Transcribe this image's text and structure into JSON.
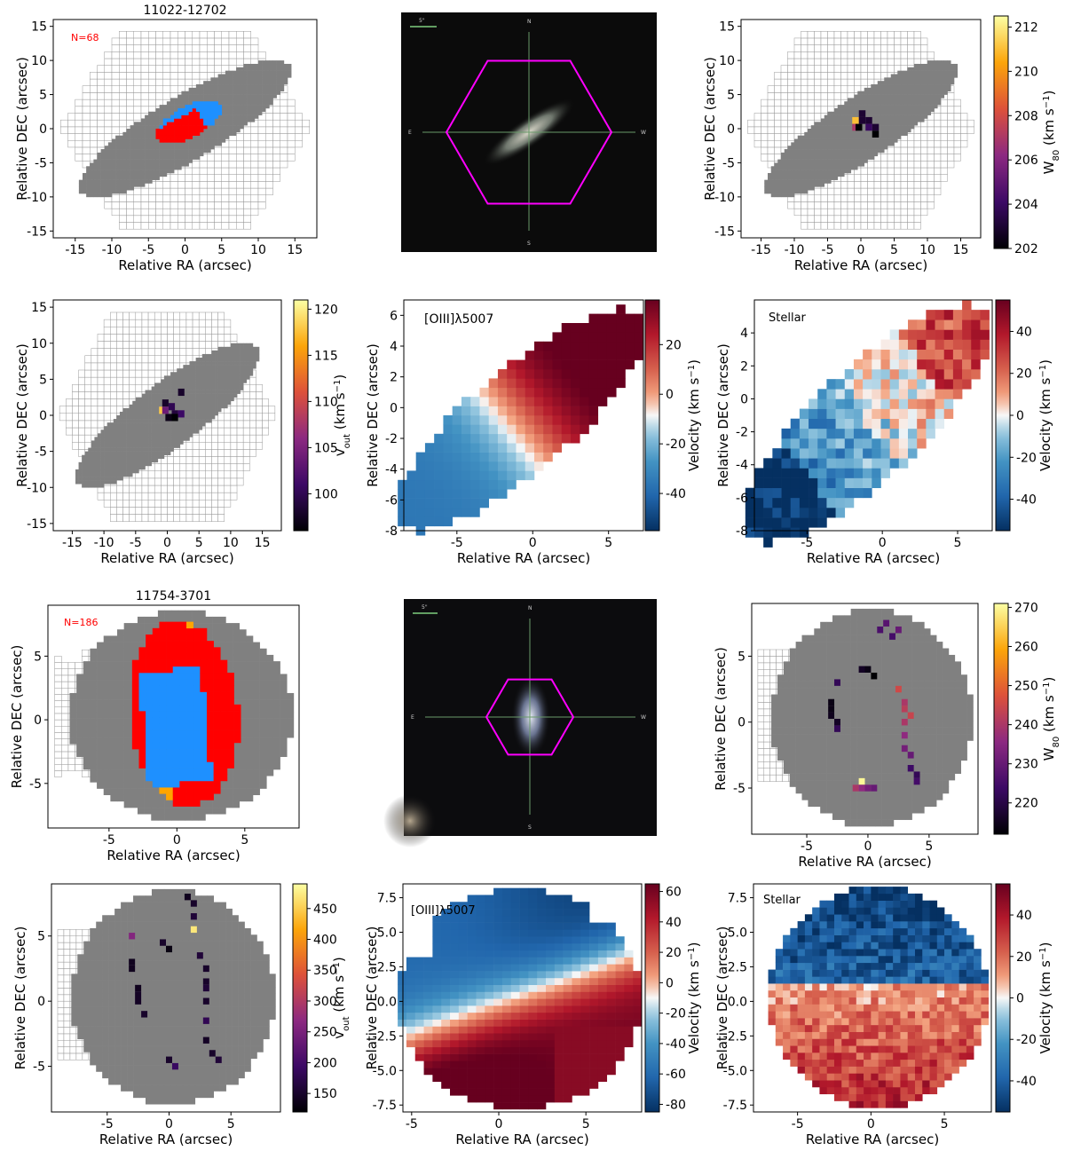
{
  "chart_data": [
    {
      "id": "p1",
      "type": "heatmap",
      "title": "11022-12702",
      "annotation": "N=68",
      "xlabel": "Relative RA (arcsec)",
      "ylabel": "Relative DEC (arcsec)",
      "xlim": [
        -18,
        18
      ],
      "ylim": [
        -16,
        16
      ],
      "xticks": [
        -15,
        -10,
        -5,
        0,
        5,
        10,
        15
      ],
      "yticks": [
        -15,
        -10,
        -5,
        0,
        5,
        10,
        15
      ],
      "map": "classification",
      "galaxy": "edge-on ellipse",
      "hexagon_field": true,
      "categories": [
        "grey",
        "blue",
        "red"
      ],
      "colors": {
        "grey": "#808080",
        "blue": "#1e90ff",
        "red": "#ff0000",
        "orange": "#ffa500"
      }
    },
    {
      "id": "p2",
      "type": "image",
      "scalebar_label": "5\"",
      "compass": {
        "n": "N",
        "s": "S",
        "e": "E",
        "w": "W"
      },
      "hexagon_color": "#ff00ff"
    },
    {
      "id": "p3",
      "type": "heatmap",
      "xlabel": "Relative RA (arcsec)",
      "ylabel": "Relative DEC (arcsec)",
      "xlim": [
        -18,
        18
      ],
      "ylim": [
        -16,
        16
      ],
      "xticks": [
        -15,
        -10,
        -5,
        0,
        5,
        10,
        15
      ],
      "yticks": [
        -15,
        -10,
        -5,
        0,
        5,
        10,
        15
      ],
      "colorbar": {
        "label": "W80 (km s−1)",
        "label_main": "W",
        "label_sub": "80",
        "label_units": "(km s",
        "label_sup": "−1",
        "label_close": ")",
        "min": 202,
        "max": 212.5,
        "ticks": [
          202,
          204,
          206,
          208,
          210,
          212
        ],
        "cmap": "inferno"
      },
      "pixels": [
        [
          -0.8,
          1.2,
          211
        ],
        [
          -0.8,
          0.2,
          207
        ],
        [
          0.2,
          1.2,
          203
        ],
        [
          0.2,
          2.2,
          203
        ],
        [
          1.2,
          1.2,
          203
        ],
        [
          1.2,
          0.2,
          204
        ],
        [
          2.2,
          0.2,
          203
        ],
        [
          -0.3,
          0.2,
          202
        ],
        [
          2.2,
          -0.8,
          202
        ]
      ]
    },
    {
      "id": "p4",
      "type": "heatmap",
      "xlabel": "Relative RA (arcsec)",
      "ylabel": "Relative DEC (arcsec)",
      "xlim": [
        -18,
        18
      ],
      "ylim": [
        -16,
        16
      ],
      "xticks": [
        -15,
        -10,
        -5,
        0,
        5,
        10,
        15
      ],
      "yticks": [
        -15,
        -10,
        -5,
        0,
        5,
        10,
        15
      ],
      "colorbar": {
        "label": "vout (km s−1)",
        "label_main": "v",
        "label_sub": "out",
        "label_units": "(km s",
        "label_sup": "−1",
        "label_close": ")",
        "min": 96,
        "max": 121,
        "ticks": [
          100,
          105,
          110,
          115,
          120
        ],
        "cmap": "inferno"
      },
      "pixels": [
        [
          -0.8,
          0.7,
          118
        ],
        [
          -0.3,
          1.7,
          98
        ],
        [
          0.7,
          1.2,
          100
        ],
        [
          0.2,
          -0.3,
          97
        ],
        [
          1.2,
          0.2,
          99
        ],
        [
          2.2,
          0.2,
          101
        ],
        [
          2.2,
          3.2,
          98
        ],
        [
          1.2,
          -0.3,
          96
        ],
        [
          -0.3,
          0.7,
          104
        ]
      ]
    },
    {
      "id": "p5",
      "type": "heatmap",
      "annotation": "[OIII]λ5007",
      "xlabel": "Relative RA (arcsec)",
      "ylabel": "Relative DEC (arcsec)",
      "xlim": [
        -8.5,
        7.3
      ],
      "ylim": [
        -8,
        7
      ],
      "xticks": [
        -5,
        0,
        5
      ],
      "yticks": [
        -8,
        -6,
        -4,
        -2,
        0,
        2,
        4,
        6
      ],
      "colorbar": {
        "label": "Velocity (km s−1)",
        "label_main": "Velocity",
        "label_units": "(km s",
        "label_sup": "−1",
        "label_close": ")",
        "min": -55,
        "max": 38,
        "ticks": [
          -40,
          -20,
          0,
          20
        ],
        "cmap": "RdBu_r"
      }
    },
    {
      "id": "p6",
      "type": "heatmap",
      "annotation": "Stellar",
      "xlabel": "Relative RA (arcsec)",
      "ylabel": "Relative DEC (arcsec)",
      "xlim": [
        -8.5,
        7.3
      ],
      "ylim": [
        -8,
        6
      ],
      "xticks": [
        -5,
        0,
        5
      ],
      "yticks": [
        -8,
        -6,
        -4,
        -2,
        0,
        2,
        4
      ],
      "colorbar": {
        "label": "Velocity (km s−1)",
        "label_main": "Velocity",
        "label_units": "(km s",
        "label_sup": "−1",
        "label_close": ")",
        "min": -55,
        "max": 55,
        "ticks": [
          -40,
          -20,
          0,
          20,
          40
        ],
        "cmap": "RdBu_r"
      }
    },
    {
      "id": "p7",
      "type": "heatmap",
      "title": "11754-3701",
      "annotation": "N=186",
      "xlabel": "Relative RA (arcsec)",
      "ylabel": "Relative DEC (arcsec)",
      "xlim": [
        -9.5,
        9
      ],
      "ylim": [
        -8.5,
        9
      ],
      "xticks": [
        -5,
        0,
        5
      ],
      "yticks": [
        -5,
        0,
        5
      ],
      "map": "classification",
      "galaxy": "round",
      "categories": [
        "grey",
        "red",
        "blue",
        "orange"
      ],
      "colors": {
        "grey": "#808080",
        "blue": "#1e90ff",
        "red": "#ff0000",
        "orange": "#ffa500"
      }
    },
    {
      "id": "p8",
      "type": "image",
      "scalebar_label": "5\"",
      "compass": {
        "n": "N",
        "s": "S",
        "e": "E",
        "w": "W"
      },
      "hexagon_color": "#ff00ff"
    },
    {
      "id": "p9",
      "type": "heatmap",
      "xlabel": "Relative RA (arcsec)",
      "ylabel": "Relative DEC (arcsec)",
      "xlim": [
        -9.5,
        9
      ],
      "ylim": [
        -8.5,
        9
      ],
      "xticks": [
        -5,
        0,
        5
      ],
      "yticks": [
        -5,
        0,
        5
      ],
      "colorbar": {
        "label": "W80 (km s−1)",
        "label_main": "W",
        "label_sub": "80",
        "label_units": "(km s",
        "label_sup": "−1",
        "label_close": ")",
        "min": 212,
        "max": 271,
        "ticks": [
          220,
          230,
          240,
          250,
          260,
          270
        ],
        "cmap": "inferno"
      },
      "pixels": [
        [
          1.5,
          7.5,
          228
        ],
        [
          2,
          6.5,
          225
        ],
        [
          2.5,
          7,
          230
        ],
        [
          1,
          7,
          226
        ],
        [
          0,
          4,
          214
        ],
        [
          0.5,
          3.5,
          212
        ],
        [
          -0.5,
          4,
          216
        ],
        [
          -2.5,
          3,
          222
        ],
        [
          -3,
          1.5,
          214
        ],
        [
          -3,
          1,
          214
        ],
        [
          -3,
          0.5,
          215
        ],
        [
          -2.5,
          0,
          216
        ],
        [
          -2.5,
          -0.5,
          222
        ],
        [
          2.5,
          2.5,
          245
        ],
        [
          3,
          1.5,
          240
        ],
        [
          3,
          1,
          242
        ],
        [
          3.5,
          0.5,
          244
        ],
        [
          3,
          0,
          240
        ],
        [
          3,
          -1,
          236
        ],
        [
          3,
          -2,
          232
        ],
        [
          3.5,
          -2.5,
          230
        ],
        [
          3.5,
          -3.5,
          224
        ],
        [
          4,
          -4,
          222
        ],
        [
          4,
          -4.5,
          225
        ],
        [
          -0.5,
          -4.5,
          270
        ],
        [
          0,
          -5,
          232
        ],
        [
          -0.5,
          -5,
          236
        ],
        [
          -1,
          -5,
          240
        ],
        [
          0.5,
          -5,
          230
        ]
      ]
    },
    {
      "id": "p10",
      "type": "heatmap",
      "xlabel": "Relative RA (arcsec)",
      "ylabel": "Relative DEC (arcsec)",
      "xlim": [
        -9.5,
        9
      ],
      "ylim": [
        -8.5,
        9
      ],
      "xticks": [
        -5,
        0,
        5
      ],
      "yticks": [
        -5,
        0,
        5
      ],
      "colorbar": {
        "label": "vout (km s−1)",
        "label_main": "v",
        "label_sub": "out",
        "label_units": "(km s",
        "label_sup": "−1",
        "label_close": ")",
        "min": 120,
        "max": 490,
        "ticks": [
          150,
          200,
          250,
          300,
          350,
          400,
          450
        ],
        "cmap": "inferno"
      },
      "pixels": [
        [
          1.5,
          8,
          140
        ],
        [
          2,
          7.5,
          150
        ],
        [
          2,
          6.5,
          160
        ],
        [
          2,
          5.5,
          470
        ],
        [
          -3,
          5,
          260
        ],
        [
          -0.5,
          4.5,
          150
        ],
        [
          0,
          4,
          130
        ],
        [
          -3,
          3,
          140
        ],
        [
          -3,
          2.5,
          140
        ],
        [
          -2.5,
          1,
          140
        ],
        [
          -2.5,
          0.5,
          145
        ],
        [
          -2.5,
          0,
          145
        ],
        [
          -2,
          -1,
          150
        ],
        [
          2.5,
          3.5,
          160
        ],
        [
          3,
          2.5,
          150
        ],
        [
          3,
          1.5,
          150
        ],
        [
          3,
          1,
          160
        ],
        [
          3,
          0,
          150
        ],
        [
          3,
          -1.5,
          180
        ],
        [
          3,
          -3,
          145
        ],
        [
          3.5,
          -4,
          150
        ],
        [
          4,
          -4.5,
          160
        ],
        [
          0,
          -4.5,
          150
        ],
        [
          0.5,
          -5,
          190
        ]
      ]
    },
    {
      "id": "p11",
      "type": "heatmap",
      "annotation": "[OIII]λ5007",
      "xlabel": "Relative RA (arcsec)",
      "ylabel": "Relative DEC (arcsec)",
      "xlim": [
        -5.5,
        8.2
      ],
      "ylim": [
        -8,
        8.5
      ],
      "xticks": [
        -5,
        0,
        5
      ],
      "yticks": [
        -7.5,
        -5.0,
        -2.5,
        0.0,
        2.5,
        5.0,
        7.5
      ],
      "ytick_labels": [
        "-7.5",
        "-5.0",
        "-2.5",
        "0.0",
        "2.5",
        "5.0",
        "7.5"
      ],
      "colorbar": {
        "label": "Velocity (km s−1)",
        "label_main": "Velocity",
        "label_units": "(km s",
        "label_sup": "−1",
        "label_close": ")",
        "min": -85,
        "max": 65,
        "ticks": [
          -80,
          -60,
          -40,
          -20,
          0,
          20,
          40,
          60
        ],
        "cmap": "RdBu_r"
      }
    },
    {
      "id": "p12",
      "type": "heatmap",
      "annotation": "Stellar",
      "xlabel": "Relative RA (arcsec)",
      "ylabel": "Relative DEC (arcsec)",
      "xlim": [
        -8,
        8.2
      ],
      "ylim": [
        -8,
        8.5
      ],
      "xticks": [
        -5,
        0,
        5
      ],
      "yticks": [
        -7.5,
        -5.0,
        -2.5,
        0.0,
        2.5,
        5.0,
        7.5
      ],
      "ytick_labels": [
        "-7.5",
        "-5.0",
        "-2.5",
        "0.0",
        "2.5",
        "5.0",
        "7.5"
      ],
      "colorbar": {
        "label": "Velocity (km s−1)",
        "label_main": "Velocity",
        "label_units": "(km s",
        "label_sup": "−1",
        "label_close": ")",
        "min": -55,
        "max": 55,
        "ticks": [
          -40,
          -20,
          0,
          20,
          40
        ],
        "cmap": "RdBu_r"
      }
    }
  ]
}
